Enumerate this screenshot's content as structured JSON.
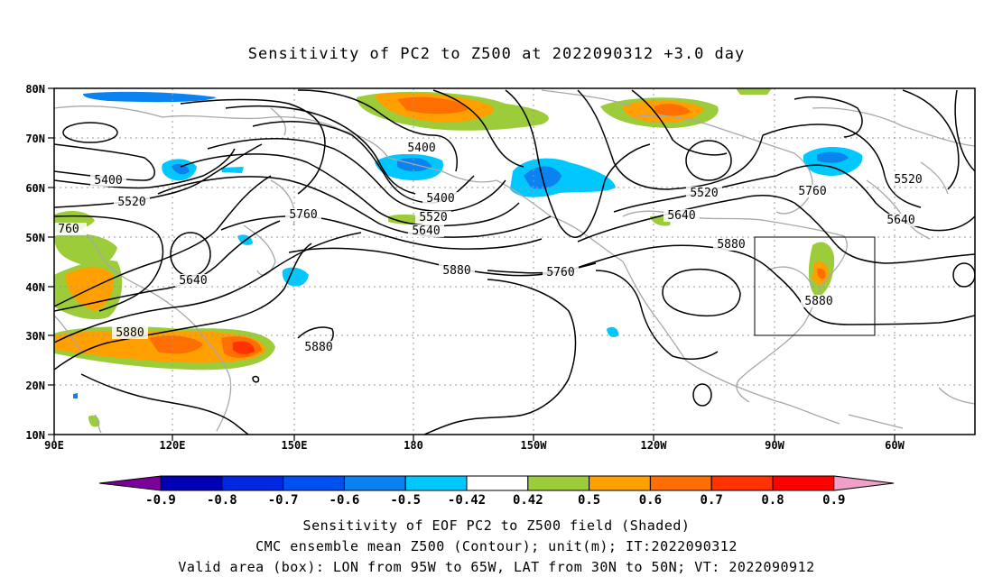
{
  "title": "Sensitivity of PC2 to Z500 at 2022090312 +3.0 day",
  "map": {
    "lon_labels": [
      "90E",
      "120E",
      "150E",
      "180",
      "150W",
      "120W",
      "90W",
      "60W"
    ],
    "lat_labels": [
      "80N",
      "70N",
      "60N",
      "50N",
      "40N",
      "30N",
      "20N",
      "10N"
    ],
    "contour_labels": [
      "5400",
      "5520",
      "5760",
      "5640",
      "5880",
      "5880",
      "5880",
      "5400",
      "5400",
      "5520",
      "5640",
      "5880",
      "5760",
      "5520",
      "5640",
      "5760",
      "5520",
      "5640",
      "5880",
      "760"
    ],
    "valid_box": {
      "lon_min": -95,
      "lon_max": -65,
      "lat_min": 30,
      "lat_max": 50
    }
  },
  "colorbar": {
    "labels": [
      "-0.9",
      "-0.8",
      "-0.7",
      "-0.6",
      "-0.5",
      "-0.42",
      "0.42",
      "0.5",
      "0.6",
      "0.7",
      "0.8",
      "0.9"
    ],
    "colors": [
      "#7a0099",
      "#0000b4",
      "#0028e0",
      "#0050f0",
      "#0a82f0",
      "#00c8ff",
      "#ffffff",
      "#9ccc3a",
      "#ffa000",
      "#ff6e00",
      "#ff3200",
      "#ff0000",
      "#f0a0c8"
    ]
  },
  "captions": {
    "line1": "Sensitivity of EOF PC2 to Z500 field (Shaded)",
    "line2": "CMC ensemble mean Z500 (Contour); unit(m); IT:2022090312",
    "line3": "Valid area (box): LON from 95W to 65W, LAT from 30N to 50N; VT: 2022090912"
  }
}
